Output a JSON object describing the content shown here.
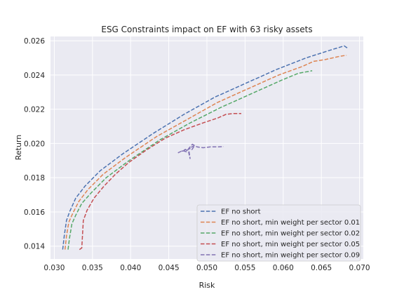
{
  "chart_data": {
    "type": "line",
    "title": "ESG Constraints impact on EF with 63 risky assets",
    "xlabel": "Risk",
    "ylabel": "Return",
    "xlim": [
      0.0295,
      0.0705
    ],
    "ylim": [
      0.01325,
      0.02625
    ],
    "xticks": [
      0.03,
      0.035,
      0.04,
      0.045,
      0.05,
      0.055,
      0.06,
      0.065,
      0.07
    ],
    "xtick_labels": [
      "0.030",
      "0.035",
      "0.040",
      "0.045",
      "0.050",
      "0.055",
      "0.060",
      "0.065",
      "0.070"
    ],
    "yticks": [
      0.014,
      0.016,
      0.018,
      0.02,
      0.022,
      0.024,
      0.026
    ],
    "ytick_labels": [
      "0.014",
      "0.016",
      "0.018",
      "0.020",
      "0.022",
      "0.024",
      "0.026"
    ],
    "grid": true,
    "legend_position": "lower-right",
    "background": "#eaeaf2",
    "series": [
      {
        "name": "EF no short",
        "color": "#4c72b0",
        "x": [
          0.0311,
          0.0313,
          0.0316,
          0.032,
          0.0328,
          0.034,
          0.036,
          0.039,
          0.043,
          0.047,
          0.051,
          0.055,
          0.059,
          0.063,
          0.0665,
          0.068,
          0.0685
        ],
        "y": [
          0.0138,
          0.0146,
          0.0155,
          0.016,
          0.0168,
          0.0175,
          0.0184,
          0.0194,
          0.0206,
          0.0217,
          0.0227,
          0.0235,
          0.0243,
          0.025,
          0.0255,
          0.0257,
          0.02555
        ]
      },
      {
        "name": "EF no short, min weight per sector 0.01",
        "color": "#dd8452",
        "x": [
          0.0314,
          0.0316,
          0.0319,
          0.0324,
          0.0332,
          0.0344,
          0.0364,
          0.0394,
          0.0434,
          0.0474,
          0.0514,
          0.0554,
          0.0594,
          0.0625,
          0.064,
          0.0655,
          0.0675,
          0.0683
        ],
        "y": [
          0.0138,
          0.0146,
          0.0154,
          0.0159,
          0.0166,
          0.0173,
          0.0182,
          0.0192,
          0.0204,
          0.0214,
          0.0224,
          0.0232,
          0.024,
          0.0245,
          0.0248,
          0.0249,
          0.0251,
          0.02515
        ]
      },
      {
        "name": "EF no short, min weight per sector 0.02",
        "color": "#55a868",
        "x": [
          0.0318,
          0.032,
          0.0323,
          0.0328,
          0.0336,
          0.0348,
          0.0368,
          0.0398,
          0.0438,
          0.0478,
          0.0518,
          0.0558,
          0.0598,
          0.062,
          0.0638
        ],
        "y": [
          0.0138,
          0.0145,
          0.0153,
          0.0158,
          0.0165,
          0.0171,
          0.018,
          0.019,
          0.0202,
          0.0212,
          0.0221,
          0.0229,
          0.0237,
          0.0241,
          0.02425
        ]
      },
      {
        "name": "EF no short, min weight per sector 0.05",
        "color": "#c44e52",
        "x": [
          0.0333,
          0.0336,
          0.0338,
          0.0343,
          0.0352,
          0.0365,
          0.038,
          0.0398,
          0.042,
          0.0445,
          0.047,
          0.0495,
          0.0515,
          0.0525,
          0.0535,
          0.0545
        ],
        "y": [
          0.0138,
          0.0139,
          0.0155,
          0.0161,
          0.0168,
          0.0175,
          0.0182,
          0.0189,
          0.0196,
          0.0203,
          0.0208,
          0.0212,
          0.0215,
          0.0217,
          0.02175,
          0.02175
        ]
      },
      {
        "name": "EF no short, min weight per sector 0.09",
        "color": "#8172b3",
        "x": [
          0.0462,
          0.0468,
          0.0473,
          0.0477,
          0.048,
          0.0484,
          0.0478,
          0.0474,
          0.0467,
          0.0472,
          0.0476,
          0.0478,
          0.0476,
          0.0481,
          0.0487,
          0.0495,
          0.0505,
          0.0515,
          0.0522
        ],
        "y": [
          0.01945,
          0.01958,
          0.01952,
          0.01972,
          0.01962,
          0.01988,
          0.01975,
          0.0196,
          0.01955,
          0.01965,
          0.0195,
          0.0191,
          0.0197,
          0.01995,
          0.0198,
          0.01975,
          0.0198,
          0.0198,
          0.01982
        ]
      }
    ]
  }
}
